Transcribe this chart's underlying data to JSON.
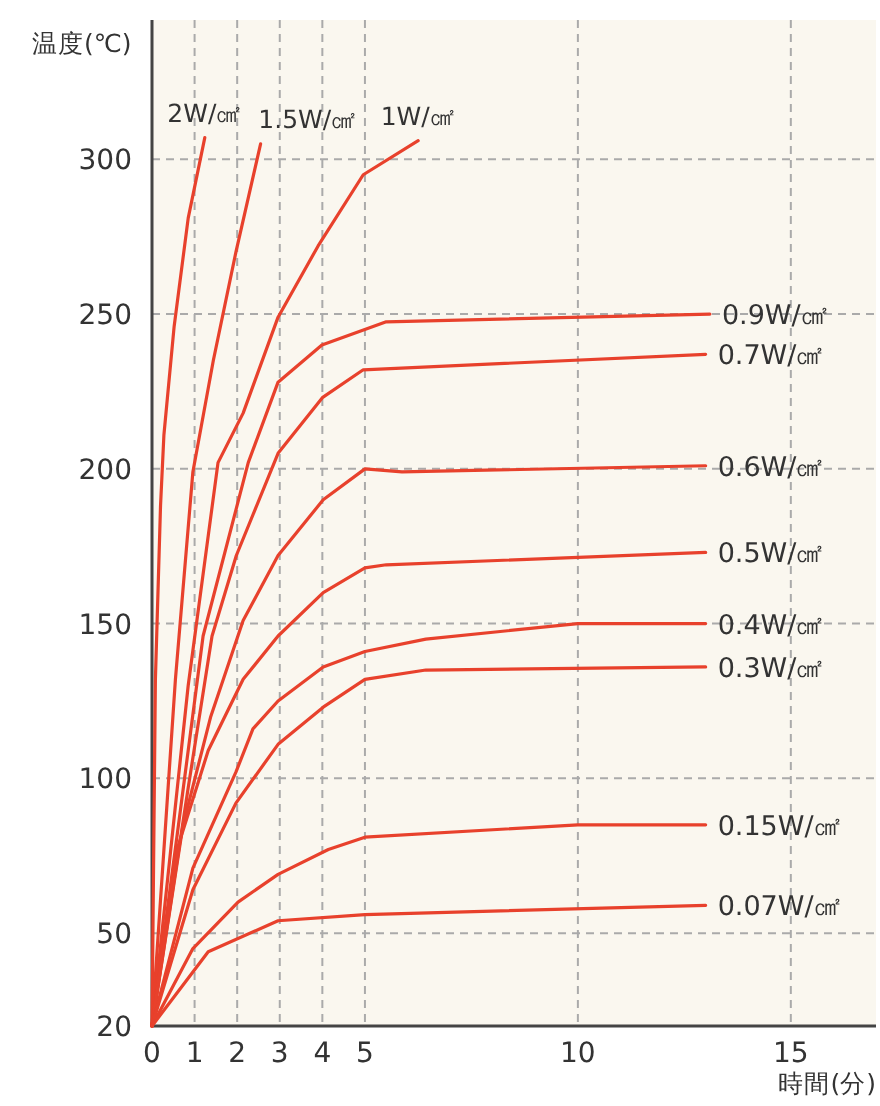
{
  "chart_data": {
    "type": "line",
    "xlabel": "時間(分)",
    "ylabel": "温度(℃)",
    "xlim": [
      0,
      17
    ],
    "ylim": [
      20,
      345
    ],
    "xticks": [
      0,
      1,
      2,
      3,
      4,
      5,
      10,
      15
    ],
    "yticks": [
      20,
      50,
      100,
      150,
      200,
      250,
      300
    ],
    "grid": true,
    "marker": "none",
    "line_style": "solid",
    "series": [
      {
        "name": "2W/㎠",
        "color": "#e8412c",
        "x": [
          0,
          0.08,
          0.2,
          0.28,
          0.52,
          0.85,
          1.24
        ],
        "values": [
          20,
          132,
          188,
          211,
          246,
          281,
          307
        ]
      },
      {
        "name": "1.5W/㎠",
        "color": "#e8412c",
        "x": [
          0,
          0.55,
          0.96,
          1.44,
          1.97,
          2.55
        ],
        "values": [
          20,
          132,
          199,
          235,
          270,
          305
        ]
      },
      {
        "name": "1W/㎠",
        "color": "#e8412c",
        "x": [
          0,
          0.85,
          1.55,
          2.14,
          2.96,
          3.9,
          4.96,
          6.25
        ],
        "values": [
          20,
          130,
          202,
          218,
          249,
          272,
          295,
          306
        ]
      },
      {
        "name": "0.9W/㎠",
        "color": "#e8412c",
        "x": [
          0,
          0.67,
          1.2,
          2.26,
          2.96,
          3.99,
          5.5,
          13.1
        ],
        "values": [
          20,
          90,
          146,
          202,
          228,
          240,
          247.5,
          250
        ]
      },
      {
        "name": "0.7W/㎠",
        "color": "#e8412c",
        "x": [
          0,
          0.85,
          1.41,
          1.98,
          2.96,
          4,
          4.96,
          13
        ],
        "values": [
          20,
          97,
          146,
          172,
          205,
          223,
          232,
          237
        ]
      },
      {
        "name": "0.6W/㎠",
        "color": "#e8412c",
        "x": [
          0,
          0.73,
          1.38,
          2.14,
          2.96,
          4.02,
          5,
          5.87,
          13
        ],
        "values": [
          20,
          85,
          120,
          151,
          172,
          190,
          200,
          199,
          201
        ]
      },
      {
        "name": "0.5W/㎠",
        "color": "#e8412c",
        "x": [
          0,
          0.61,
          1.32,
          2.14,
          2.96,
          4.02,
          5,
          5.5,
          13
        ],
        "values": [
          20,
          78,
          109,
          132,
          146,
          160,
          168,
          169,
          173
        ]
      },
      {
        "name": "0.4W/㎠",
        "color": "#e8412c",
        "x": [
          0,
          0.96,
          1.97,
          2.37,
          2.96,
          4.02,
          5,
          6.43,
          10,
          13
        ],
        "values": [
          20,
          71,
          102,
          116,
          125,
          136,
          141,
          145,
          150,
          150
        ]
      },
      {
        "name": "0.3W/㎠",
        "color": "#e8412c",
        "x": [
          0,
          0.96,
          1.97,
          2.96,
          4.02,
          5,
          6.43,
          13
        ],
        "values": [
          20,
          64,
          92,
          111,
          123,
          132,
          135,
          136
        ]
      },
      {
        "name": "0.15W/㎠",
        "color": "#e8412c",
        "x": [
          0,
          0.96,
          2.02,
          2.96,
          4.14,
          5,
          10,
          13
        ],
        "values": [
          20,
          45,
          60,
          69,
          77,
          81,
          85,
          85
        ]
      },
      {
        "name": "0.07W/㎠",
        "color": "#e8412c",
        "x": [
          0,
          1.32,
          2.96,
          5,
          13
        ],
        "values": [
          20,
          44,
          54,
          56,
          59
        ]
      }
    ]
  }
}
